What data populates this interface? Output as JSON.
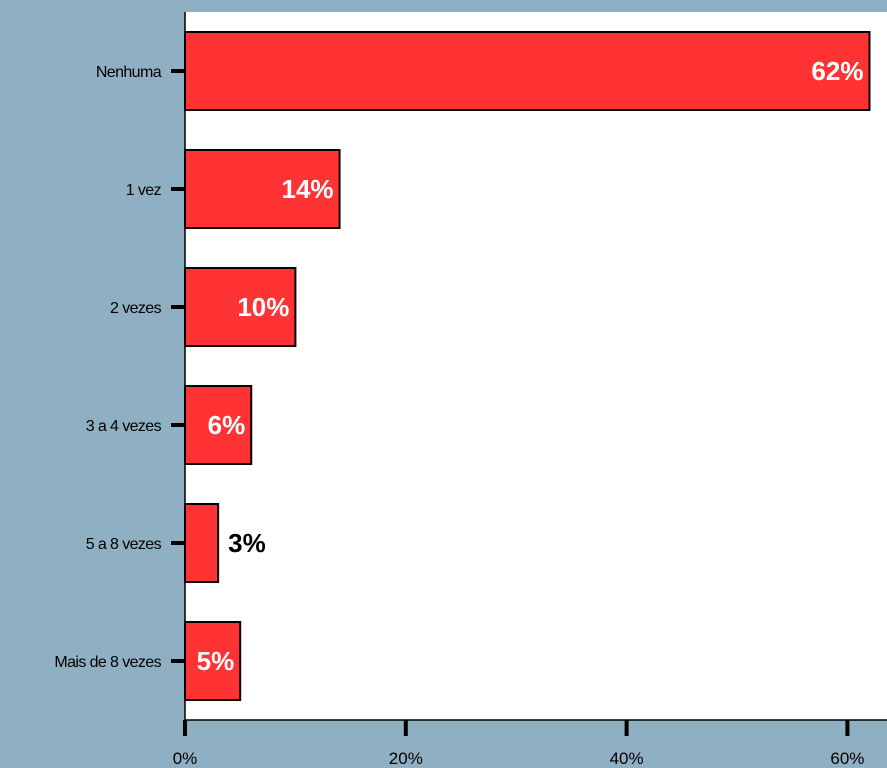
{
  "chart_data": {
    "type": "bar",
    "orientation": "horizontal",
    "categories": [
      "Nenhuma",
      "1 vez",
      "2 vezes",
      "3 a 4 vezes",
      "5 a 8 vezes",
      "Mais de 8 vezes"
    ],
    "values": [
      62,
      14,
      10,
      6,
      3,
      5
    ],
    "data_labels": [
      "62%",
      "14%",
      "10%",
      "6%",
      "3%",
      "5%"
    ],
    "xlim": [
      0,
      62
    ],
    "xticks": [
      0,
      20,
      40,
      60
    ],
    "xtick_labels": [
      "0%",
      "20%",
      "40%",
      "60%"
    ],
    "title": "",
    "xlabel": "",
    "ylabel": "",
    "grid": false,
    "legend": "none",
    "colors": {
      "background": "#8fafc2",
      "plot_area": "#ffffff",
      "bar_fill": "#ff3333",
      "bar_stroke": "#000000",
      "label_inside": "#ffffff",
      "label_outside": "#000000"
    }
  }
}
